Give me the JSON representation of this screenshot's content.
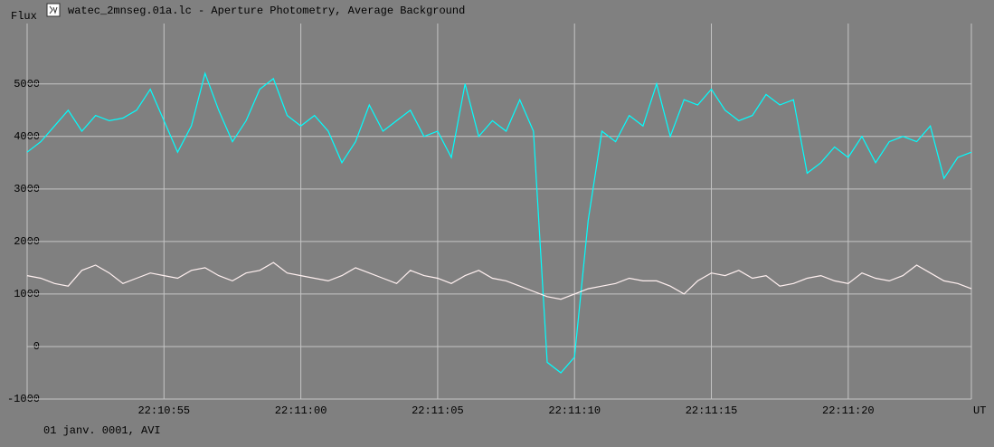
{
  "chart_data": {
    "type": "line",
    "title": "watec_2mnseg.01a.lc - Aperture Photometry, Average Background",
    "y_label": "Flux",
    "x_label": "UT",
    "footer": "01 janv. 0001, AVI",
    "xlim": [
      80150,
      80184.5
    ],
    "ylim": [
      -1000,
      6150
    ],
    "xticks": [
      {
        "value": 80155,
        "label": "22:10:55"
      },
      {
        "value": 80160,
        "label": "22:11:00"
      },
      {
        "value": 80165,
        "label": "22:11:05"
      },
      {
        "value": 80170,
        "label": "22:11:10"
      },
      {
        "value": 80175,
        "label": "22:11:15"
      },
      {
        "value": 80180,
        "label": "22:11:20"
      }
    ],
    "yticks": [
      -1000,
      0,
      1000,
      2000,
      3000,
      4000,
      5000
    ],
    "grid": true,
    "x": [
      80150,
      80150.5,
      80151,
      80151.5,
      80152,
      80152.5,
      80153,
      80153.5,
      80154,
      80154.5,
      80155,
      80155.5,
      80156,
      80156.5,
      80157,
      80157.5,
      80158,
      80158.5,
      80159,
      80159.5,
      80160,
      80160.5,
      80161,
      80161.5,
      80162,
      80162.5,
      80163,
      80163.5,
      80164,
      80164.5,
      80165,
      80165.5,
      80166,
      80166.5,
      80167,
      80167.5,
      80168,
      80168.5,
      80169,
      80169.5,
      80170,
      80170.5,
      80171,
      80171.5,
      80172,
      80172.5,
      80173,
      80173.5,
      80174,
      80174.5,
      80175,
      80175.5,
      80176,
      80176.5,
      80177,
      80177.5,
      80178,
      80178.5,
      80179,
      80179.5,
      80180,
      80180.5,
      80181,
      80181.5,
      80182,
      80182.5,
      80183,
      80183.5,
      80184,
      80184.5
    ],
    "series": [
      {
        "color": "#00ffff",
        "values": [
          3700,
          3900,
          4200,
          4500,
          4100,
          4400,
          4300,
          4350,
          4500,
          4900,
          4300,
          3700,
          4200,
          5200,
          4500,
          3900,
          4300,
          4900,
          5100,
          4400,
          4200,
          4400,
          4100,
          3500,
          3900,
          4600,
          4100,
          4300,
          4500,
          4000,
          4100,
          3600,
          5000,
          4000,
          4300,
          4100,
          4700,
          4100,
          -300,
          -500,
          -200,
          2400,
          4100,
          3900,
          4400,
          4200,
          5000,
          4000,
          4700,
          4600,
          4900,
          4500,
          4300,
          4400,
          4800,
          4600,
          4700,
          3300,
          3500,
          3800,
          3600,
          4000,
          3500,
          3900,
          4000,
          3900,
          4200,
          3200,
          3600,
          3700
        ]
      },
      {
        "color": "#fff0f0",
        "values": [
          1350,
          1300,
          1200,
          1150,
          1450,
          1550,
          1400,
          1200,
          1300,
          1400,
          1350,
          1300,
          1450,
          1500,
          1350,
          1250,
          1400,
          1450,
          1600,
          1400,
          1350,
          1300,
          1250,
          1350,
          1500,
          1400,
          1300,
          1200,
          1450,
          1350,
          1300,
          1200,
          1350,
          1450,
          1300,
          1250,
          1150,
          1050,
          950,
          900,
          1000,
          1100,
          1150,
          1200,
          1300,
          1250,
          1250,
          1150,
          1000,
          1250,
          1400,
          1350,
          1450,
          1300,
          1350,
          1150,
          1200,
          1300,
          1350,
          1250,
          1200,
          1400,
          1300,
          1250,
          1350,
          1550,
          1400,
          1250,
          1200,
          1100
        ]
      }
    ]
  }
}
